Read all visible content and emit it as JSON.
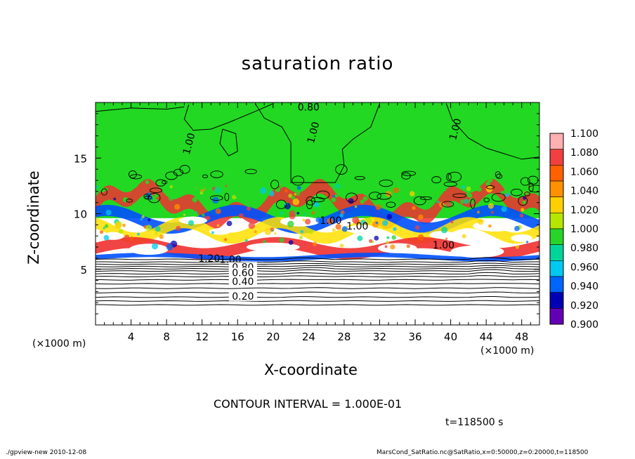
{
  "chart_data": {
    "type": "heatmap",
    "title": "saturation ratio",
    "xlabel": "X-coordinate",
    "ylabel": "Z-coordinate",
    "x_unit_left": "(×1000 m)",
    "x_unit_right": "(×1000 m)",
    "xlim": [
      0,
      50
    ],
    "ylim": [
      0,
      20
    ],
    "x_ticks": [
      "4",
      "8",
      "12",
      "16",
      "20",
      "24",
      "28",
      "32",
      "36",
      "40",
      "44",
      "48"
    ],
    "x_tick_values": [
      4,
      8,
      12,
      16,
      20,
      24,
      28,
      32,
      36,
      40,
      44,
      48
    ],
    "y_ticks": [
      "5",
      "10",
      "15"
    ],
    "y_tick_values": [
      5,
      10,
      15
    ],
    "colorbar": {
      "labels": [
        "1.100",
        "1.080",
        "1.060",
        "1.040",
        "1.020",
        "1.000",
        "0.980",
        "0.960",
        "0.940",
        "0.920",
        "0.900"
      ],
      "colors": [
        "#ffb0b0",
        "#f04040",
        "#ff6000",
        "#ff9000",
        "#ffd000",
        "#b4e600",
        "#28d428",
        "#00d49a",
        "#00c8f0",
        "#0064ff",
        "#0000b4",
        "#6400b4"
      ]
    },
    "field_colors": {
      "supersaturated_upper": "#22d822",
      "white_unshaded": "#ffffff",
      "red_band": "#f03030",
      "blue_band": "#0050ff",
      "yellow_band": "#ffe000"
    },
    "contour_labels": [
      {
        "text": "0.80",
        "x": 24,
        "z": 19.6
      },
      {
        "text": "1.00",
        "x": 10.5,
        "z": 16.3
      },
      {
        "text": "1.00",
        "x": 24.5,
        "z": 17.3
      },
      {
        "text": "1.00",
        "x": 40.5,
        "z": 17.6
      },
      {
        "text": "1.00",
        "x": 26.5,
        "z": 9.4
      },
      {
        "text": "1.00",
        "x": 29.5,
        "z": 8.9
      },
      {
        "text": "1.00",
        "x": 39.2,
        "z": 7.2
      },
      {
        "text": "1.20",
        "x": 12.8,
        "z": 6.0
      },
      {
        "text": "1.00",
        "x": 15.2,
        "z": 5.9
      },
      {
        "text": "0.80",
        "x": 16.6,
        "z": 5.2
      },
      {
        "text": "0.60",
        "x": 16.6,
        "z": 4.7
      },
      {
        "text": "0.40",
        "x": 16.6,
        "z": 3.9
      },
      {
        "text": "0.20",
        "x": 16.6,
        "z": 2.6
      }
    ],
    "grid": false,
    "legend": "right"
  },
  "contour_interval": "CONTOUR INTERVAL = 1.000E-01",
  "time_label": "t=118500 s",
  "footer": {
    "left": "./gpview-new   2010-12-08",
    "right": "MarsCond_SatRatio.nc@SatRatio,x=0:50000,z=0:20000,t=118500"
  }
}
